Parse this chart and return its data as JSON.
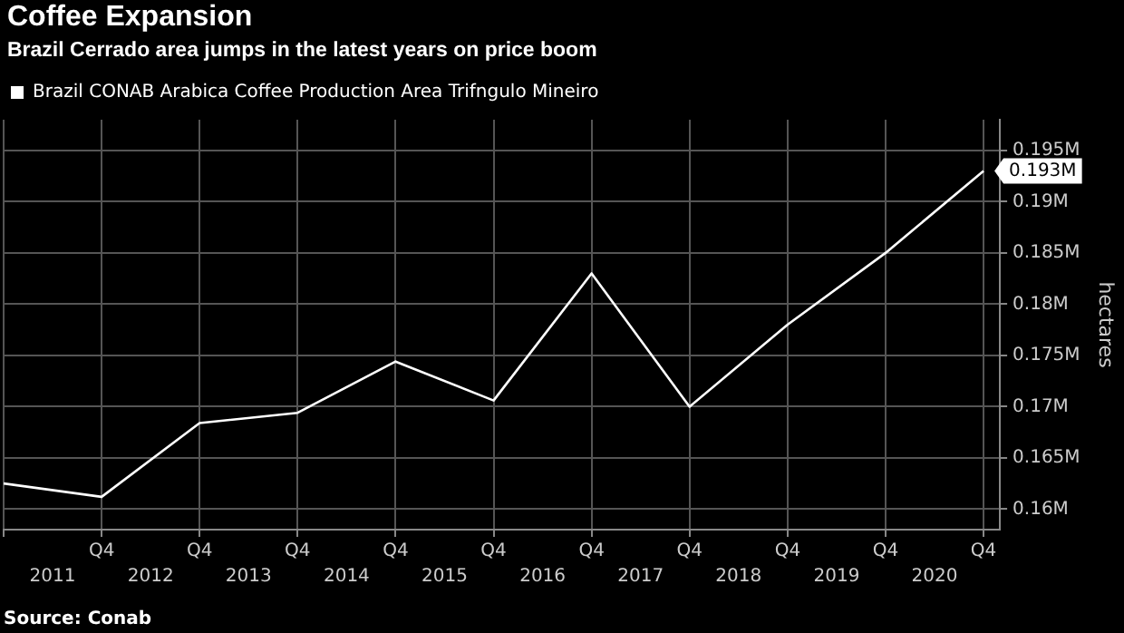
{
  "chart_data": {
    "type": "line",
    "title": "Coffee Expansion",
    "subtitle": "Brazil Cerrado area jumps in the latest years on price boom",
    "ylabel": "hectares",
    "annotations": [
      "Source: Conab"
    ],
    "x": [
      "2010-10",
      "2011-10",
      "2012-10",
      "2013-10",
      "2014-10",
      "2015-10",
      "2016-10",
      "2017-10",
      "2018-10",
      "2019-10",
      "2020-10"
    ],
    "series": [
      {
        "name": "Brazil CONAB Arabica Coffee Production Area Trifngulo Mineiro",
        "color": "#ffffff",
        "values": [
          0.1625,
          0.1612,
          0.1684,
          0.1694,
          0.1744,
          0.1706,
          0.183,
          0.17,
          0.178,
          0.185,
          0.193
        ],
        "value_labels": [
          null,
          null,
          null,
          null,
          null,
          null,
          null,
          null,
          null,
          null,
          "0.193M"
        ]
      }
    ],
    "xlim": [
      "2010-10",
      "2020-12"
    ],
    "xticks": [
      {
        "value": "2010-10",
        "label": null
      },
      {
        "value": "2011-10",
        "label": "Q4"
      },
      {
        "value": "2012-10",
        "label": "Q4"
      },
      {
        "value": "2013-10",
        "label": "Q4"
      },
      {
        "value": "2014-10",
        "label": "Q4"
      },
      {
        "value": "2015-10",
        "label": "Q4"
      },
      {
        "value": "2016-10",
        "label": "Q4"
      },
      {
        "value": "2017-10",
        "label": "Q4"
      },
      {
        "value": "2018-10",
        "label": "Q4"
      },
      {
        "value": "2019-10",
        "label": "Q4"
      },
      {
        "value": "2020-10",
        "label": "Q4"
      }
    ],
    "x2lim": [
      "2010-10",
      "2020-12"
    ],
    "x2ticks": [
      {
        "value": "2011-04",
        "label": "2011"
      },
      {
        "value": "2012-04",
        "label": "2012"
      },
      {
        "value": "2013-04",
        "label": "2013"
      },
      {
        "value": "2014-04",
        "label": "2014"
      },
      {
        "value": "2015-04",
        "label": "2015"
      },
      {
        "value": "2016-04",
        "label": "2016"
      },
      {
        "value": "2017-04",
        "label": "2017"
      },
      {
        "value": "2018-04",
        "label": "2018"
      },
      {
        "value": "2019-04",
        "label": "2019"
      },
      {
        "value": "2020-04",
        "label": "2020"
      }
    ],
    "ylim": [
      0.158,
      0.198
    ],
    "yticks": [
      {
        "value": 0.16,
        "label": "0.16M"
      },
      {
        "value": 0.165,
        "label": "0.165M"
      },
      {
        "value": 0.17,
        "label": "0.17M"
      },
      {
        "value": 0.175,
        "label": "0.175M"
      },
      {
        "value": 0.18,
        "label": "0.18M"
      },
      {
        "value": 0.185,
        "label": "0.185M"
      },
      {
        "value": 0.19,
        "label": "0.19M"
      },
      {
        "value": 0.195,
        "label": "0.195M"
      }
    ],
    "grid": true,
    "legend": "top left",
    "marker": "none",
    "line_style": "solid"
  }
}
